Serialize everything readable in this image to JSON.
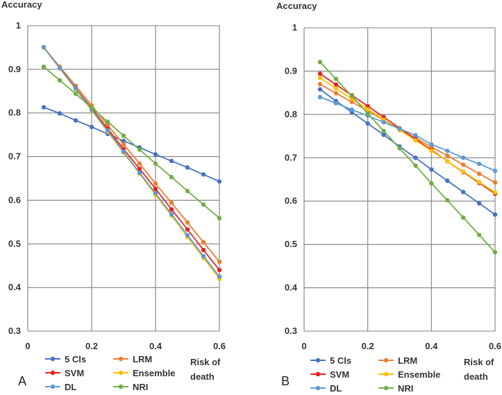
{
  "chart_data": [
    {
      "type": "line",
      "panel_label": "A",
      "ylabel": "Accuracy",
      "xlabel_lines": [
        "Risk of",
        "death"
      ],
      "xlim": [
        0,
        0.6
      ],
      "ylim": [
        0.3,
        1
      ],
      "x_ticks": [
        0,
        0.2,
        0.4,
        0.6
      ],
      "x_tick_labels": [
        "0",
        "0.2",
        "0.4",
        "0.6"
      ],
      "y_ticks": [
        0.3,
        0.4,
        0.5,
        0.6,
        0.7,
        0.8,
        0.9,
        1
      ],
      "y_tick_labels": [
        "0.3",
        "0.4",
        "0.5",
        "0.6",
        "0.7",
        "0.8",
        "0.9",
        "1"
      ],
      "x": [
        0.05,
        0.1,
        0.15,
        0.2,
        0.25,
        0.3,
        0.35,
        0.4,
        0.45,
        0.5,
        0.55,
        0.6
      ],
      "series": [
        {
          "name": "5 Cls",
          "color": "#4472C4",
          "values": [
            0.813,
            0.799,
            0.783,
            0.768,
            0.752,
            0.736,
            0.721,
            0.705,
            0.69,
            0.675,
            0.659,
            0.643
          ]
        },
        {
          "name": "LRM",
          "color": "#ED7D31",
          "values": [
            0.95,
            0.906,
            0.862,
            0.817,
            0.772,
            0.728,
            0.684,
            0.638,
            0.594,
            0.549,
            0.504,
            0.459
          ]
        },
        {
          "name": "SVM",
          "color": "#E8211E",
          "values": [
            0.95,
            0.903,
            0.857,
            0.811,
            0.764,
            0.717,
            0.672,
            0.626,
            0.579,
            0.533,
            0.486,
            0.44
          ]
        },
        {
          "name": "Ensemble",
          "color": "#FFC000",
          "values": [
            0.95,
            0.902,
            0.854,
            0.806,
            0.757,
            0.709,
            0.661,
            0.612,
            0.565,
            0.516,
            0.468,
            0.42
          ]
        },
        {
          "name": "DL",
          "color": "#5B9BD5",
          "values": [
            0.951,
            0.903,
            0.856,
            0.808,
            0.76,
            0.711,
            0.663,
            0.616,
            0.568,
            0.52,
            0.472,
            0.425
          ]
        },
        {
          "name": "NRI",
          "color": "#70AD47",
          "values": [
            0.906,
            0.875,
            0.844,
            0.812,
            0.78,
            0.748,
            0.716,
            0.684,
            0.653,
            0.621,
            0.59,
            0.559
          ]
        }
      ]
    },
    {
      "type": "line",
      "panel_label": "B",
      "ylabel": "Accuracy",
      "xlabel_lines": [
        "Risk of",
        "death"
      ],
      "xlim": [
        0,
        0.6
      ],
      "ylim": [
        0.3,
        1
      ],
      "x_ticks": [
        0,
        0.2,
        0.4,
        0.6
      ],
      "x_tick_labels": [
        "0",
        "0.2",
        "0.4",
        "0.6"
      ],
      "y_ticks": [
        0.3,
        0.4,
        0.5,
        0.6,
        0.7,
        0.8,
        0.9,
        1
      ],
      "y_tick_labels": [
        "0.3",
        "0.4",
        "0.5",
        "0.6",
        "0.7",
        "0.8",
        "0.9",
        "1"
      ],
      "x": [
        0.05,
        0.1,
        0.15,
        0.2,
        0.25,
        0.3,
        0.35,
        0.4,
        0.45,
        0.5,
        0.55,
        0.6
      ],
      "series": [
        {
          "name": "5 Cls",
          "color": "#4472C4",
          "values": [
            0.858,
            0.831,
            0.805,
            0.779,
            0.753,
            0.726,
            0.7,
            0.673,
            0.647,
            0.621,
            0.595,
            0.569
          ]
        },
        {
          "name": "LRM",
          "color": "#ED7D31",
          "values": [
            0.87,
            0.849,
            0.829,
            0.808,
            0.787,
            0.767,
            0.746,
            0.725,
            0.705,
            0.684,
            0.663,
            0.643
          ]
        },
        {
          "name": "SVM",
          "color": "#E8211E",
          "values": [
            0.894,
            0.869,
            0.844,
            0.819,
            0.794,
            0.768,
            0.743,
            0.718,
            0.692,
            0.667,
            0.642,
            0.617
          ]
        },
        {
          "name": "Ensemble",
          "color": "#FFC000",
          "values": [
            0.884,
            0.86,
            0.836,
            0.812,
            0.788,
            0.764,
            0.74,
            0.716,
            0.692,
            0.668,
            0.644,
            0.62
          ]
        },
        {
          "name": "DL",
          "color": "#5B9BD5",
          "values": [
            0.84,
            0.826,
            0.811,
            0.797,
            0.782,
            0.767,
            0.752,
            0.731,
            0.716,
            0.7,
            0.686,
            0.67
          ]
        },
        {
          "name": "NRI",
          "color": "#70AD47",
          "values": [
            0.921,
            0.882,
            0.842,
            0.802,
            0.762,
            0.722,
            0.682,
            0.641,
            0.602,
            0.562,
            0.522,
            0.482
          ]
        }
      ]
    }
  ]
}
